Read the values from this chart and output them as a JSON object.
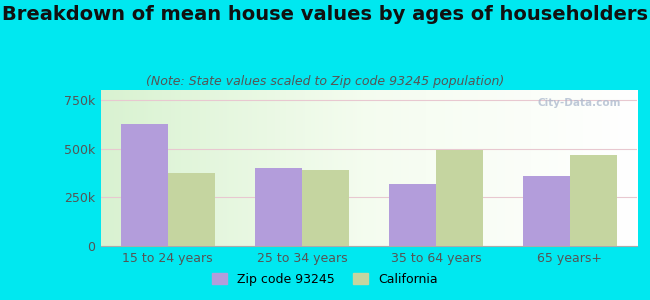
{
  "title": "Breakdown of mean house values by ages of householders",
  "subtitle": "(Note: State values scaled to Zip code 93245 population)",
  "categories": [
    "15 to 24 years",
    "25 to 34 years",
    "35 to 64 years",
    "65 years+"
  ],
  "zip_values": [
    625000,
    400000,
    320000,
    360000
  ],
  "ca_values": [
    375000,
    390000,
    490000,
    465000
  ],
  "zip_color": "#b39ddb",
  "ca_color": "#c5d5a0",
  "background_color": "#00e8f0",
  "ylim": [
    0,
    800000
  ],
  "yticks": [
    0,
    250000,
    500000,
    750000
  ],
  "ytick_labels": [
    "0",
    "250k",
    "500k",
    "750k"
  ],
  "legend_zip": "Zip code 93245",
  "legend_ca": "California",
  "bar_width": 0.35,
  "title_fontsize": 14,
  "subtitle_fontsize": 9,
  "tick_fontsize": 9,
  "legend_fontsize": 9,
  "grid_color": "#e8c8d0",
  "title_color": "#111111",
  "subtitle_color": "#555555",
  "tick_color": "#555555"
}
